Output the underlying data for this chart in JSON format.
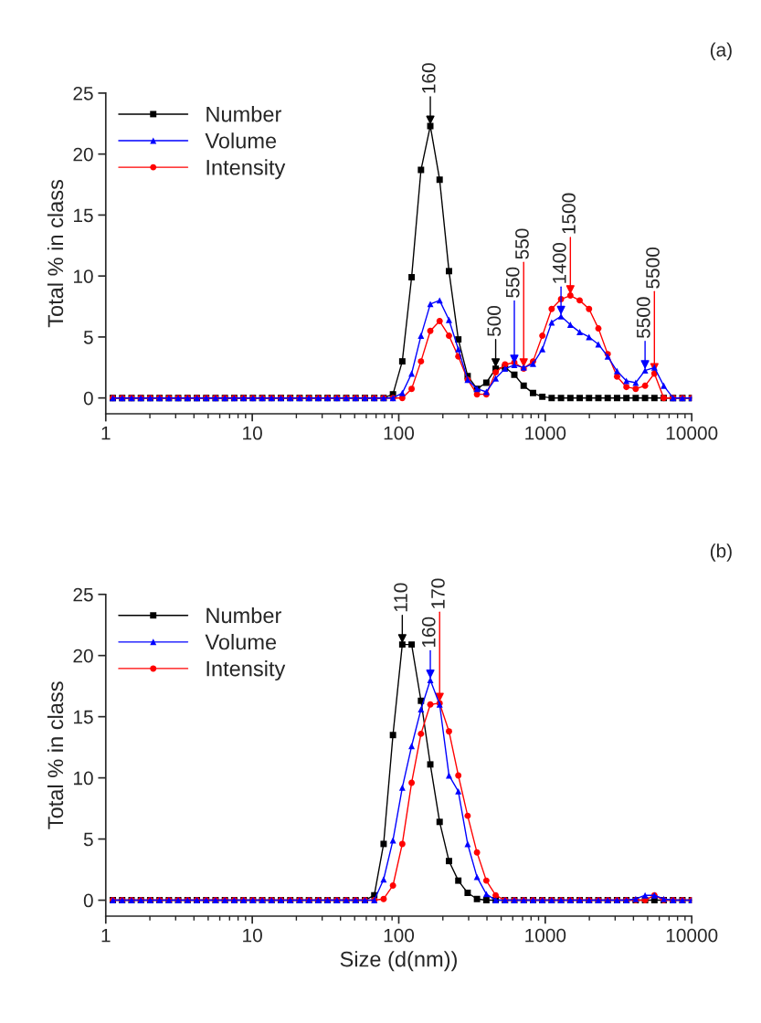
{
  "chart_data": [
    {
      "type": "line",
      "ylabel": "Total % in class",
      "log": "x",
      "legend": "top left",
      "xlim": [
        1,
        10000
      ],
      "xticks": [
        1,
        10,
        100,
        1000,
        10000
      ],
      "ylim": [
        -1.3,
        25
      ],
      "yticks": [
        0,
        5,
        10,
        15,
        20,
        25
      ],
      "x": [
        1.117,
        1.294,
        1.499,
        1.736,
        2.01,
        2.328,
        2.696,
        3.122,
        3.615,
        4.187,
        4.849,
        5.615,
        6.503,
        7.531,
        8.721,
        10.1,
        11.7,
        13.54,
        15.69,
        18.17,
        21.04,
        24.36,
        28.21,
        32.67,
        37.84,
        43.82,
        50.75,
        58.77,
        68.06,
        78.82,
        91.28,
        105.7,
        122.4,
        141.8,
        164.2,
        190.1,
        220.2,
        255,
        295.3,
        342,
        396.1,
        458.7,
        531.2,
        615.1,
        712.4,
        825,
        955.4,
        1106,
        1281,
        1484,
        1718,
        1990,
        2305,
        2669,
        3091,
        3580,
        4145,
        4801,
        5560,
        6439,
        7456,
        8635,
        10000
      ],
      "series": [
        {
          "name": "Number",
          "color": "#000000",
          "marker": "square",
          "values": [
            0,
            0,
            0,
            0,
            0,
            0,
            0,
            0,
            0,
            0,
            0,
            0,
            0,
            0,
            0,
            0,
            0,
            0,
            0,
            0,
            0,
            0,
            0,
            0,
            0,
            0,
            0,
            0,
            0,
            0,
            0.3,
            3.0,
            9.9,
            18.7,
            22.3,
            17.9,
            10.4,
            4.8,
            1.8,
            0.75,
            1.25,
            2.4,
            2.5,
            1.9,
            1.0,
            0.4,
            0.1,
            0,
            0,
            0,
            0,
            0,
            0,
            0,
            0,
            0,
            0,
            0,
            0,
            0,
            0,
            0,
            0
          ]
        },
        {
          "name": "Volume",
          "color": "#0000ff",
          "marker": "triangle",
          "values": [
            0,
            0,
            0,
            0,
            0,
            0,
            0,
            0,
            0,
            0,
            0,
            0,
            0,
            0,
            0,
            0,
            0,
            0,
            0,
            0,
            0,
            0,
            0,
            0,
            0,
            0,
            0,
            0,
            0,
            0,
            0,
            0.4,
            2.0,
            5.1,
            7.7,
            8.0,
            6.4,
            4.0,
            1.5,
            0.75,
            0.5,
            1.6,
            2.4,
            2.7,
            2.5,
            2.8,
            4.0,
            6.2,
            6.7,
            6.0,
            5.4,
            5.0,
            4.4,
            3.4,
            2.2,
            1.4,
            1.25,
            2.25,
            2.5,
            1.0,
            0,
            0,
            0
          ]
        },
        {
          "name": "Intensity",
          "color": "#ff0000",
          "marker": "circle",
          "values": [
            0,
            0,
            0,
            0,
            0,
            0,
            0,
            0,
            0,
            0,
            0,
            0,
            0,
            0,
            0,
            0,
            0,
            0,
            0,
            0,
            0,
            0,
            0,
            0,
            0,
            0,
            0,
            0,
            0,
            0,
            0,
            0,
            0.75,
            3.0,
            5.5,
            6.3,
            5.1,
            3.4,
            1.5,
            0.3,
            0.3,
            2.1,
            2.75,
            2.9,
            2.4,
            3.0,
            5.1,
            7.3,
            8.1,
            8.4,
            8.0,
            7.3,
            5.7,
            3.6,
            1.75,
            0.9,
            0.75,
            1.0,
            2.0,
            0,
            0,
            0,
            0
          ]
        }
      ],
      "annotations": [
        "(a)",
        {
          "text": "160",
          "x": 164.2,
          "y": 22.3
        },
        {
          "text": "500",
          "x": 458.7,
          "y": 2.4
        },
        {
          "text": "550",
          "x": 615.1,
          "y": 2.7
        },
        {
          "text": "550",
          "x": 712.4,
          "y": 2.4
        },
        {
          "text": "1400",
          "x": 1281,
          "y": 6.7
        },
        {
          "text": "1500",
          "x": 1484,
          "y": 8.4
        },
        {
          "text": "5500",
          "x": 4801,
          "y": 2.25
        },
        {
          "text": "5500",
          "x": 5560,
          "y": 2.0
        }
      ]
    },
    {
      "type": "line",
      "ylabel": "Total % in class",
      "xlabel": "Size (d(nm))",
      "log": "x",
      "legend": "top left",
      "xlim": [
        1,
        10000
      ],
      "xticks": [
        1,
        10,
        100,
        1000,
        10000
      ],
      "ylim": [
        -1.3,
        25
      ],
      "yticks": [
        0,
        5,
        10,
        15,
        20,
        25
      ],
      "x": [
        1.117,
        1.294,
        1.499,
        1.736,
        2.01,
        2.328,
        2.696,
        3.122,
        3.615,
        4.187,
        4.849,
        5.615,
        6.503,
        7.531,
        8.721,
        10.1,
        11.7,
        13.54,
        15.69,
        18.17,
        21.04,
        24.36,
        28.21,
        32.67,
        37.84,
        43.82,
        50.75,
        58.77,
        68.06,
        78.82,
        91.28,
        105.7,
        122.4,
        141.8,
        164.2,
        190.1,
        220.2,
        255,
        295.3,
        342,
        396.1,
        458.7,
        531.2,
        615.1,
        712.4,
        825,
        955.4,
        1106,
        1281,
        1484,
        1718,
        1990,
        2305,
        2669,
        3091,
        3580,
        4145,
        4801,
        5560,
        6439,
        7456,
        8635,
        10000
      ],
      "series": [
        {
          "name": "Number",
          "color": "#000000",
          "marker": "square",
          "values": [
            0,
            0,
            0,
            0,
            0,
            0,
            0,
            0,
            0,
            0,
            0,
            0,
            0,
            0,
            0,
            0,
            0,
            0,
            0,
            0,
            0,
            0,
            0,
            0,
            0,
            0,
            0,
            0,
            0.4,
            4.6,
            13.5,
            20.9,
            20.9,
            16.3,
            11.1,
            6.4,
            3.2,
            1.6,
            0.6,
            0.1,
            0,
            0,
            0,
            0,
            0,
            0,
            0,
            0,
            0,
            0,
            0,
            0,
            0,
            0,
            0,
            0,
            0,
            0,
            0,
            0,
            0,
            0,
            0
          ]
        },
        {
          "name": "Volume",
          "color": "#0000ff",
          "marker": "triangle",
          "values": [
            0,
            0,
            0,
            0,
            0,
            0,
            0,
            0,
            0,
            0,
            0,
            0,
            0,
            0,
            0,
            0,
            0,
            0,
            0,
            0,
            0,
            0,
            0,
            0,
            0,
            0,
            0,
            0,
            0,
            1.7,
            4.9,
            9.2,
            12.6,
            15.6,
            18.0,
            16.0,
            10.2,
            8.9,
            4.6,
            1.9,
            0.5,
            0,
            0,
            0,
            0,
            0,
            0,
            0,
            0,
            0,
            0,
            0,
            0,
            0,
            0,
            0,
            0.1,
            0.4,
            0.4,
            0.1,
            0,
            0,
            0
          ]
        },
        {
          "name": "Intensity",
          "color": "#ff0000",
          "marker": "circle",
          "values": [
            0,
            0,
            0,
            0,
            0,
            0,
            0,
            0,
            0,
            0,
            0,
            0,
            0,
            0,
            0,
            0,
            0,
            0,
            0,
            0,
            0,
            0,
            0,
            0,
            0,
            0,
            0,
            0,
            0,
            0.1,
            1.2,
            4.6,
            9.6,
            13.6,
            16.0,
            16.1,
            13.8,
            10.2,
            6.9,
            3.9,
            1.6,
            0.4,
            0,
            0,
            0,
            0,
            0,
            0,
            0,
            0,
            0,
            0,
            0,
            0,
            0,
            0,
            0,
            0,
            0.4,
            0,
            0,
            0,
            0
          ]
        }
      ],
      "annotations": [
        "(b)",
        {
          "text": "110",
          "x": 105.7,
          "y": 20.9
        },
        {
          "text": "160",
          "x": 164.2,
          "y": 18.0
        },
        {
          "text": "170",
          "x": 190.1,
          "y": 16.1
        }
      ]
    }
  ]
}
